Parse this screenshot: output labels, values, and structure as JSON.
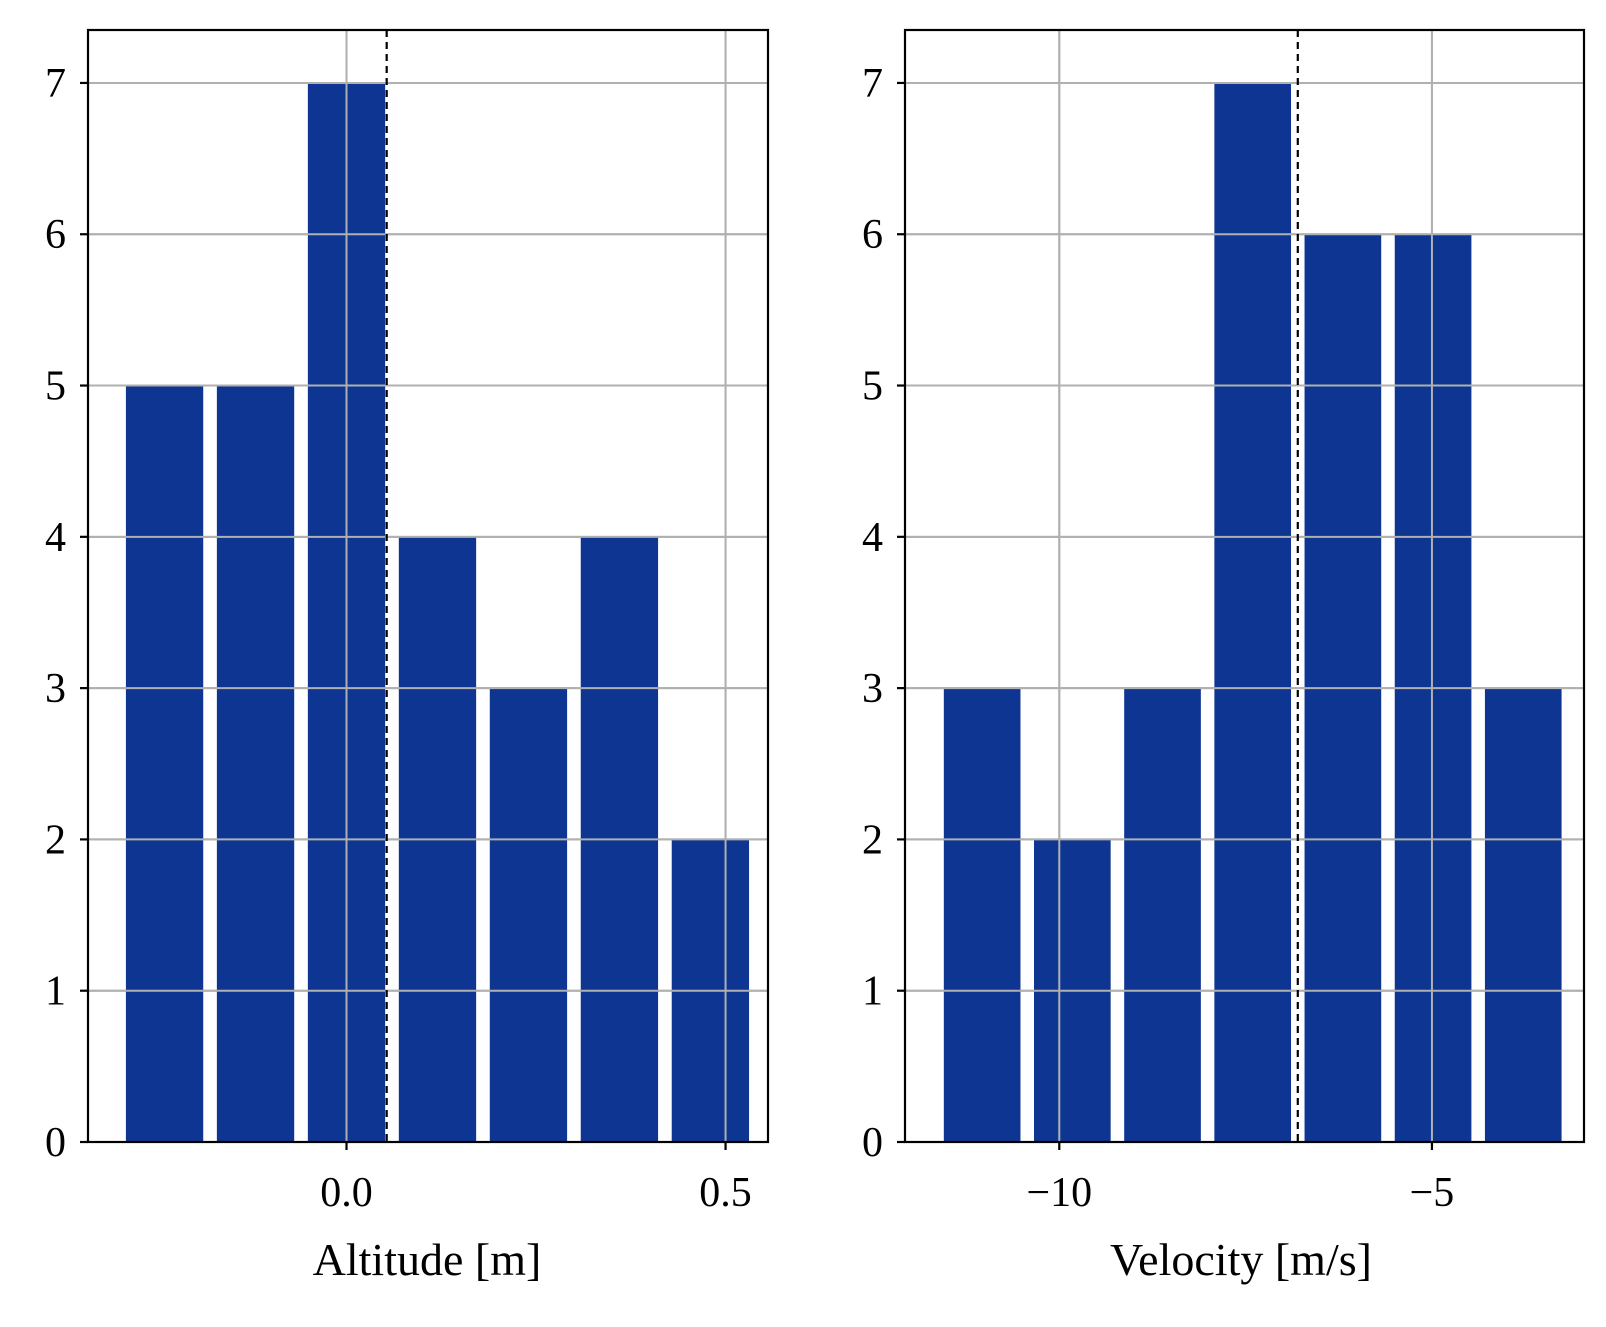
{
  "chart_data": [
    {
      "type": "bar",
      "subtype": "histogram",
      "xlabel": "Altitude [m]",
      "ylabel": "",
      "bins": [
        {
          "x0": -0.3,
          "x1": -0.18,
          "count": 5
        },
        {
          "x0": -0.18,
          "x1": -0.06,
          "count": 5
        },
        {
          "x0": -0.06,
          "x1": 0.06,
          "count": 7
        },
        {
          "x0": 0.06,
          "x1": 0.18,
          "count": 4
        },
        {
          "x0": 0.18,
          "x1": 0.3,
          "count": 3
        },
        {
          "x0": 0.3,
          "x1": 0.42,
          "count": 4
        },
        {
          "x0": 0.42,
          "x1": 0.54,
          "count": 2
        }
      ],
      "xlim": [
        -0.341,
        0.556
      ],
      "ylim": [
        0,
        7.35
      ],
      "xticks": [
        0.0,
        0.5
      ],
      "xtick_labels": [
        "0.0",
        "0.5"
      ],
      "yticks": [
        0,
        1,
        2,
        3,
        4,
        5,
        6,
        7
      ],
      "ytick_labels": [
        "0",
        "1",
        "2",
        "3",
        "4",
        "5",
        "6",
        "7"
      ],
      "vline": 0.053,
      "vline_style": "dashed",
      "grid": true,
      "bar_color": "#0d3591"
    },
    {
      "type": "bar",
      "subtype": "histogram",
      "xlabel": "Velocity [m/s]",
      "ylabel": "",
      "bins": [
        {
          "x0": -11.64,
          "x1": -10.43,
          "count": 3
        },
        {
          "x0": -10.43,
          "x1": -9.22,
          "count": 2
        },
        {
          "x0": -9.22,
          "x1": -8.01,
          "count": 3
        },
        {
          "x0": -8.01,
          "x1": -6.8,
          "count": 7
        },
        {
          "x0": -6.8,
          "x1": -5.59,
          "count": 6
        },
        {
          "x0": -5.59,
          "x1": -4.38,
          "count": 6
        },
        {
          "x0": -4.38,
          "x1": -3.17,
          "count": 3
        }
      ],
      "xlim": [
        -12.07,
        -2.96
      ],
      "ylim": [
        0,
        7.35
      ],
      "xticks": [
        -10,
        -5
      ],
      "xtick_labels": [
        "−10",
        "−5"
      ],
      "yticks": [
        0,
        1,
        2,
        3,
        4,
        5,
        6,
        7
      ],
      "ytick_labels": [
        "0",
        "1",
        "2",
        "3",
        "4",
        "5",
        "6",
        "7"
      ],
      "vline": -6.8,
      "vline_style": "dashed",
      "grid": true,
      "bar_color": "#0d3591"
    }
  ]
}
